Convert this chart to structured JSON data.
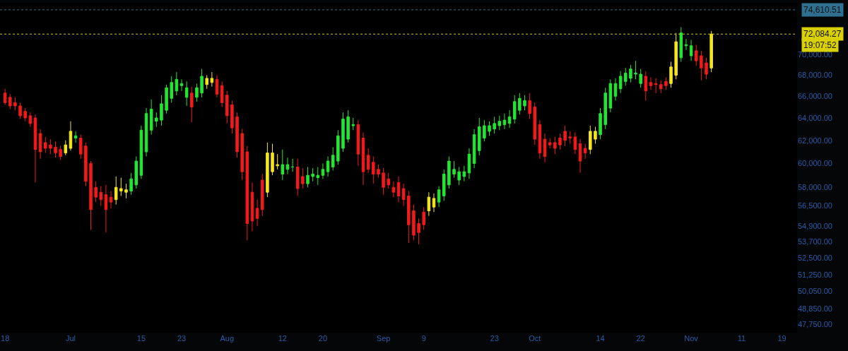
{
  "chart_data": {
    "type": "candlestick",
    "x": [
      "--06-18",
      "--06-19",
      "--06-20",
      "--06-21",
      "--06-22",
      "--06-23",
      "--06-24",
      "--06-25",
      "--06-26",
      "--06-27",
      "--06-28",
      "--06-29",
      "--06-30",
      "--07-01",
      "--07-02",
      "--07-03",
      "--07-04",
      "--07-05",
      "--07-06",
      "--07-07",
      "--07-08",
      "--07-09",
      "--07-10",
      "--07-11",
      "--07-12",
      "--07-13",
      "--07-14",
      "--07-15",
      "--07-16",
      "--07-17",
      "--07-18",
      "--07-19",
      "--07-20",
      "--07-21",
      "--07-22",
      "--07-23",
      "--07-24",
      "--07-25",
      "--07-26",
      "--07-27",
      "--07-28",
      "--07-29",
      "--07-30",
      "--07-31",
      "--08-01",
      "--08-02",
      "--08-03",
      "--08-04",
      "--08-05",
      "--08-06",
      "--08-07",
      "--08-08",
      "--08-09",
      "--08-10",
      "--08-11",
      "--08-12",
      "--08-13",
      "--08-14",
      "--08-15",
      "--08-16",
      "--08-17",
      "--08-18",
      "--08-19",
      "--08-20",
      "--08-21",
      "--08-22",
      "--08-23",
      "--08-24",
      "--08-25",
      "--08-26",
      "--08-27",
      "--08-28",
      "--08-29",
      "--08-30",
      "--08-31",
      "--09-01",
      "--09-02",
      "--09-03",
      "--09-04",
      "--09-05",
      "--09-06",
      "--09-07",
      "--09-08",
      "--09-09",
      "--09-10",
      "--09-11",
      "--09-12",
      "--09-13",
      "--09-14",
      "--09-15",
      "--09-16",
      "--09-17",
      "--09-18",
      "--09-19",
      "--09-20",
      "--09-21",
      "--09-22",
      "--09-23",
      "--09-24",
      "--09-25",
      "--09-26",
      "--09-27",
      "--09-28",
      "--09-29",
      "--09-30",
      "--10-01",
      "--10-02",
      "--10-03",
      "--10-04",
      "--10-05",
      "--10-06",
      "--10-07",
      "--10-08",
      "--10-09",
      "--10-10",
      "--10-11",
      "--10-12",
      "--10-13",
      "--10-14",
      "--10-15",
      "--10-16",
      "--10-17",
      "--10-18",
      "--10-19",
      "--10-20",
      "--10-21",
      "--10-22",
      "--10-23",
      "--10-24",
      "--10-25",
      "--10-26",
      "--10-27",
      "--10-28",
      "--10-29",
      "--10-30",
      "--10-31",
      "--11-01",
      "--11-02",
      "--11-03",
      "--11-04",
      "--11-05"
    ],
    "ohlc": [
      [
        66300,
        66700,
        65200,
        65400
      ],
      [
        65900,
        66200,
        64800,
        65100
      ],
      [
        65400,
        65900,
        64700,
        65100
      ],
      [
        65100,
        65400,
        63900,
        64200
      ],
      [
        64600,
        64900,
        63700,
        64000
      ],
      [
        64200,
        64500,
        63200,
        63500
      ],
      [
        64000,
        64300,
        58400,
        61200
      ],
      [
        62600,
        63000,
        60400,
        61000
      ],
      [
        61800,
        62300,
        60900,
        61300
      ],
      [
        61600,
        62100,
        60800,
        61300
      ],
      [
        61400,
        61900,
        60500,
        60900
      ],
      [
        61200,
        61500,
        60300,
        60600
      ],
      [
        60900,
        62000,
        60700,
        61600
      ],
      [
        61300,
        63700,
        61100,
        62800
      ],
      [
        62200,
        62800,
        61800,
        62400
      ],
      [
        62200,
        62500,
        60400,
        60800
      ],
      [
        61500,
        61800,
        58100,
        58500
      ],
      [
        60000,
        60200,
        54600,
        56200
      ],
      [
        58000,
        58500,
        56800,
        57200
      ],
      [
        57600,
        58100,
        56500,
        57000
      ],
      [
        57400,
        58200,
        54400,
        56200
      ],
      [
        57200,
        57700,
        56300,
        56800
      ],
      [
        57000,
        58900,
        56600,
        58000
      ],
      [
        57700,
        58800,
        57300,
        57900
      ],
      [
        57600,
        58300,
        57100,
        57800
      ],
      [
        57700,
        59200,
        57400,
        58700
      ],
      [
        58200,
        60600,
        57900,
        60200
      ],
      [
        59000,
        63300,
        58700,
        62900
      ],
      [
        61000,
        64900,
        60600,
        64400
      ],
      [
        62900,
        65700,
        62500,
        64800
      ],
      [
        63700,
        64500,
        63200,
        64000
      ],
      [
        63800,
        66100,
        63300,
        65300
      ],
      [
        64700,
        67100,
        64400,
        66800
      ],
      [
        65800,
        67900,
        65400,
        67300
      ],
      [
        66500,
        68300,
        66100,
        67600
      ],
      [
        67000,
        67600,
        66500,
        67200
      ],
      [
        65900,
        67400,
        65100,
        66800
      ],
      [
        66300,
        66900,
        63600,
        65000
      ],
      [
        65900,
        67200,
        65500,
        66800
      ],
      [
        66300,
        68600,
        65900,
        67900
      ],
      [
        67100,
        68000,
        66700,
        67700
      ],
      [
        67300,
        68300,
        66900,
        67700
      ],
      [
        67600,
        68000,
        65900,
        66200
      ],
      [
        67000,
        67400,
        65000,
        65400
      ],
      [
        66100,
        66500,
        63500,
        64200
      ],
      [
        65200,
        65600,
        62600,
        63100
      ],
      [
        64100,
        64500,
        60500,
        61000
      ],
      [
        62600,
        63000,
        58600,
        59300
      ],
      [
        61000,
        61500,
        53800,
        55100
      ],
      [
        57600,
        58400,
        54500,
        55300
      ],
      [
        56300,
        57000,
        54900,
        55500
      ],
      [
        58600,
        59100,
        55700,
        56200
      ],
      [
        57600,
        61800,
        57200,
        60900
      ],
      [
        59300,
        61700,
        59000,
        60900
      ],
      [
        59800,
        60800,
        59500,
        59900
      ],
      [
        59100,
        61200,
        58600,
        59900
      ],
      [
        59500,
        60500,
        59100,
        59900
      ],
      [
        59700,
        60400,
        59300,
        59700
      ],
      [
        59700,
        60400,
        57300,
        57900
      ],
      [
        58900,
        59600,
        57900,
        58300
      ],
      [
        58300,
        59700,
        58000,
        59000
      ],
      [
        58900,
        59600,
        58500,
        59100
      ],
      [
        58800,
        59700,
        58200,
        59000
      ],
      [
        59000,
        60000,
        58700,
        59500
      ],
      [
        59300,
        60600,
        58900,
        60200
      ],
      [
        59700,
        61400,
        59400,
        60700
      ],
      [
        60200,
        62900,
        59900,
        62400
      ],
      [
        61300,
        64500,
        61000,
        63900
      ],
      [
        62100,
        64700,
        61800,
        64100
      ],
      [
        63300,
        64000,
        62900,
        63400
      ],
      [
        63400,
        63800,
        59800,
        60800
      ],
      [
        62200,
        62700,
        58200,
        59300
      ],
      [
        60700,
        61300,
        59200,
        59500
      ],
      [
        60100,
        60600,
        58300,
        59100
      ],
      [
        59500,
        59900,
        58800,
        59100
      ],
      [
        59200,
        59600,
        57400,
        58000
      ],
      [
        58700,
        59200,
        57900,
        58200
      ],
      [
        58000,
        58500,
        57200,
        57600
      ],
      [
        58400,
        58900,
        56800,
        57300
      ],
      [
        57900,
        58300,
        56500,
        57000
      ],
      [
        57300,
        57700,
        53600,
        55000
      ],
      [
        56100,
        56600,
        53800,
        54200
      ],
      [
        55100,
        55500,
        53500,
        54400
      ],
      [
        56000,
        56400,
        54600,
        55000
      ],
      [
        56100,
        57600,
        55700,
        57200
      ],
      [
        56400,
        57500,
        56000,
        57100
      ],
      [
        56800,
        58100,
        56400,
        57800
      ],
      [
        57300,
        59500,
        56900,
        59100
      ],
      [
        58200,
        60600,
        57900,
        60200
      ],
      [
        59100,
        60200,
        58800,
        59500
      ],
      [
        58600,
        59700,
        58200,
        59300
      ],
      [
        58900,
        59800,
        58500,
        59300
      ],
      [
        59200,
        61300,
        58700,
        60800
      ],
      [
        60000,
        63000,
        59600,
        62500
      ],
      [
        61100,
        64000,
        60700,
        63200
      ],
      [
        62200,
        63800,
        61900,
        63300
      ],
      [
        62800,
        63700,
        62400,
        63300
      ],
      [
        63000,
        64100,
        62600,
        63500
      ],
      [
        63300,
        64200,
        62900,
        63700
      ],
      [
        63400,
        64400,
        63000,
        63800
      ],
      [
        63500,
        64700,
        63100,
        64100
      ],
      [
        63900,
        66100,
        63500,
        65500
      ],
      [
        64700,
        66300,
        64300,
        65800
      ],
      [
        65100,
        66100,
        64700,
        65600
      ],
      [
        65600,
        66300,
        63900,
        64400
      ],
      [
        65000,
        65400,
        61600,
        62100
      ],
      [
        63400,
        63800,
        60400,
        60900
      ],
      [
        62100,
        62600,
        60100,
        60600
      ],
      [
        61800,
        62200,
        61300,
        61600
      ],
      [
        61800,
        62300,
        60800,
        61300
      ],
      [
        62200,
        62600,
        61200,
        61600
      ],
      [
        62800,
        63300,
        61500,
        62000
      ],
      [
        62300,
        62800,
        61700,
        62200
      ],
      [
        62300,
        62700,
        60800,
        61200
      ],
      [
        61700,
        62100,
        59200,
        60200
      ],
      [
        61300,
        61700,
        60400,
        60900
      ],
      [
        61200,
        63300,
        60800,
        62800
      ],
      [
        62100,
        63200,
        61700,
        62800
      ],
      [
        62500,
        64900,
        62100,
        64400
      ],
      [
        63400,
        66800,
        63000,
        66300
      ],
      [
        64900,
        67600,
        64500,
        67200
      ],
      [
        66000,
        67700,
        65600,
        67200
      ],
      [
        66700,
        68400,
        66300,
        67900
      ],
      [
        67400,
        68700,
        67000,
        68200
      ],
      [
        67700,
        69000,
        67300,
        68600
      ],
      [
        68100,
        69400,
        67600,
        68200
      ],
      [
        67200,
        68600,
        66800,
        68100
      ],
      [
        67900,
        68400,
        65600,
        66500
      ],
      [
        67300,
        67800,
        66600,
        67000
      ],
      [
        67200,
        67700,
        66300,
        67100
      ],
      [
        67100,
        67500,
        66300,
        66700
      ],
      [
        67400,
        67800,
        66600,
        67000
      ],
      [
        67200,
        69300,
        66800,
        68800
      ],
      [
        68000,
        72200,
        67600,
        71300
      ],
      [
        69700,
        72800,
        69300,
        72200
      ],
      [
        70900,
        71600,
        70500,
        71000
      ],
      [
        69900,
        71500,
        69400,
        70900
      ],
      [
        70400,
        71000,
        68900,
        69400
      ],
      [
        69900,
        70400,
        67500,
        68700
      ],
      [
        69200,
        69700,
        67600,
        68100
      ],
      [
        68700,
        72400,
        68300,
        72084.27
      ]
    ],
    "colors": [
      "#f21a1a",
      "#f21a1a",
      "#f21a1a",
      "#f21a1a",
      "#f21a1a",
      "#f21a1a",
      "#f21a1a",
      "#f21a1a",
      "#f21a1a",
      "#f21a1a",
      "#f21a1a",
      "#f21a1a",
      "#f5e61c",
      "#f5e61c",
      "#22e632",
      "#f21a1a",
      "#f21a1a",
      "#f21a1a",
      "#f21a1a",
      "#f21a1a",
      "#f21a1a",
      "#f21a1a",
      "#f5e61c",
      "#f5e61c",
      "#f5e61c",
      "#22e632",
      "#22e632",
      "#22e632",
      "#22e632",
      "#22e632",
      "#22e632",
      "#22e632",
      "#22e632",
      "#22e632",
      "#22e632",
      "#22e632",
      "#22e632",
      "#f21a1a",
      "#22e632",
      "#22e632",
      "#f5e61c",
      "#f5e61c",
      "#f21a1a",
      "#f21a1a",
      "#f21a1a",
      "#f21a1a",
      "#f21a1a",
      "#f21a1a",
      "#f21a1a",
      "#f21a1a",
      "#f21a1a",
      "#f21a1a",
      "#f5e61c",
      "#f5e61c",
      "#f5e61c",
      "#22e632",
      "#22e632",
      "#22e632",
      "#f21a1a",
      "#f21a1a",
      "#22e632",
      "#22e632",
      "#22e632",
      "#22e632",
      "#22e632",
      "#22e632",
      "#22e632",
      "#22e632",
      "#22e632",
      "#22e632",
      "#f21a1a",
      "#f21a1a",
      "#f21a1a",
      "#f21a1a",
      "#f21a1a",
      "#f21a1a",
      "#f21a1a",
      "#f21a1a",
      "#f21a1a",
      "#f21a1a",
      "#f21a1a",
      "#f21a1a",
      "#f21a1a",
      "#f21a1a",
      "#f5e61c",
      "#f5e61c",
      "#22e632",
      "#22e632",
      "#22e632",
      "#22e632",
      "#22e632",
      "#22e632",
      "#22e632",
      "#22e632",
      "#22e632",
      "#22e632",
      "#22e632",
      "#22e632",
      "#22e632",
      "#22e632",
      "#22e632",
      "#22e632",
      "#22e632",
      "#22e632",
      "#f21a1a",
      "#f21a1a",
      "#f21a1a",
      "#f21a1a",
      "#f21a1a",
      "#f21a1a",
      "#f21a1a",
      "#f21a1a",
      "#f21a1a",
      "#f21a1a",
      "#f21a1a",
      "#f21a1a",
      "#f5e61c",
      "#f5e61c",
      "#22e632",
      "#22e632",
      "#22e632",
      "#22e632",
      "#22e632",
      "#22e632",
      "#22e632",
      "#22e632",
      "#22e632",
      "#f21a1a",
      "#f21a1a",
      "#f21a1a",
      "#f21a1a",
      "#f21a1a",
      "#f5e61c",
      "#f5e61c",
      "#22e632",
      "#22e632",
      "#22e632",
      "#f21a1a",
      "#f21a1a",
      "#f21a1a",
      "#f5e61c"
    ],
    "log": true,
    "xlim": [
      "--06-17",
      "--11-22"
    ],
    "xticks": [
      {
        "value": "--06-18",
        "label": "18"
      },
      {
        "value": "--07-01",
        "label": "Jul"
      },
      {
        "value": "--07-15",
        "label": "15"
      },
      {
        "value": "--07-23",
        "label": "23"
      },
      {
        "value": "--08-01",
        "label": "Aug"
      },
      {
        "value": "--08-12",
        "label": "12"
      },
      {
        "value": "--08-20",
        "label": "20"
      },
      {
        "value": "--09-01",
        "label": "Sep"
      },
      {
        "value": "--09-09",
        "label": "9"
      },
      {
        "value": "--09-23",
        "label": "23"
      },
      {
        "value": "--10-01",
        "label": "Oct"
      },
      {
        "value": "--10-14",
        "label": "14"
      },
      {
        "value": "--10-22",
        "label": "22"
      },
      {
        "value": "--11-01",
        "label": "Nov"
      },
      {
        "value": "--11-11",
        "label": "11"
      },
      {
        "value": "--11-19",
        "label": "19"
      }
    ],
    "ylim": [
      47200,
      75350
    ],
    "yticks": [
      {
        "value": 70000,
        "label": "70,000.00"
      },
      {
        "value": 68000,
        "label": "68,000.00"
      },
      {
        "value": 66000,
        "label": "66,000.00"
      },
      {
        "value": 64000,
        "label": "64,000.00"
      },
      {
        "value": 62000,
        "label": "62,000.00"
      },
      {
        "value": 60000,
        "label": "60,000.00"
      },
      {
        "value": 58000,
        "label": "58,000.00"
      },
      {
        "value": 56500,
        "label": "56,500.00"
      },
      {
        "value": 54900,
        "label": "54,900.00"
      },
      {
        "value": 53700,
        "label": "53,700.00"
      },
      {
        "value": 52500,
        "label": "52,500.00"
      },
      {
        "value": 51250,
        "label": "51,250.00"
      },
      {
        "value": 50050,
        "label": "50,050.00"
      },
      {
        "value": 48850,
        "label": "48,850.00"
      },
      {
        "value": 47750,
        "label": "47,750.00"
      }
    ],
    "ref_lines": [
      {
        "axis": "y",
        "value": 74610.51,
        "label": "74,610.51",
        "color": "#2f6f8f",
        "line_style": "dotted"
      },
      {
        "axis": "y",
        "value": 72084.27,
        "label": "72,084.27",
        "color": "#d8d000",
        "line_style": "dotted"
      }
    ],
    "annotations": [
      "19:07:52"
    ],
    "grid": false
  }
}
